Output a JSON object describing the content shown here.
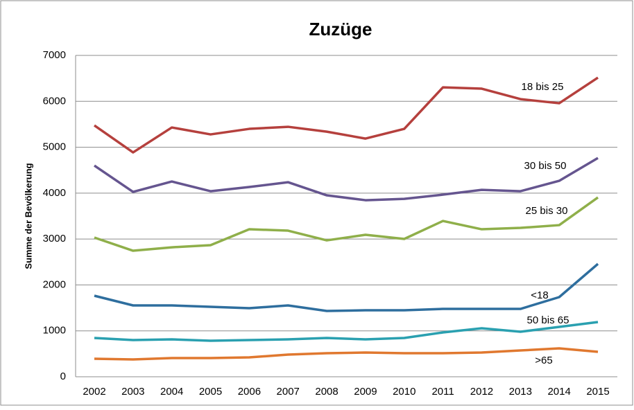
{
  "chart_data": {
    "type": "line",
    "title": "Zuzüge",
    "y_label": "Summe der Bevölkerung",
    "categories": [
      "2002",
      "2003",
      "2004",
      "2005",
      "2006",
      "2007",
      "2008",
      "2009",
      "2010",
      "2011",
      "2012",
      "2013",
      "2014",
      "2015"
    ],
    "ylim": [
      0,
      7000
    ],
    "yticks": [
      0,
      1000,
      2000,
      3000,
      4000,
      5000,
      6000,
      7000
    ],
    "grid": true,
    "series": [
      {
        "name": "18 bis 25",
        "color": "#b5403d",
        "values": [
          5475,
          4887,
          5430,
          5279,
          5400,
          5445,
          5339,
          5188,
          5400,
          6305,
          6275,
          6048,
          5958,
          6516
        ]
      },
      {
        "name": "30 bis 50",
        "color": "#65558f",
        "values": [
          4600,
          4027,
          4253,
          4042,
          4133,
          4238,
          3952,
          3846,
          3876,
          3967,
          4072,
          4042,
          4268,
          4766
        ]
      },
      {
        "name": "25 bis 30",
        "color": "#8faf4a",
        "values": [
          3032,
          2745,
          2820,
          2866,
          3213,
          3183,
          2971,
          3092,
          3002,
          3394,
          3213,
          3243,
          3303,
          3906
        ]
      },
      {
        "name": "<18",
        "color": "#2e6e9e",
        "values": [
          1765,
          1554,
          1554,
          1523,
          1493,
          1554,
          1433,
          1448,
          1448,
          1478,
          1478,
          1478,
          1735,
          2459
        ]
      },
      {
        "name": "50 bis 65",
        "color": "#2aa0b0",
        "values": [
          845,
          800,
          814,
          784,
          800,
          814,
          845,
          814,
          845,
          965,
          1056,
          980,
          1086,
          1192
        ]
      },
      {
        "name": ">65",
        "color": "#e0782f",
        "values": [
          392,
          377,
          407,
          407,
          422,
          483,
          513,
          528,
          513,
          513,
          528,
          573,
          618,
          543
        ]
      }
    ]
  }
}
